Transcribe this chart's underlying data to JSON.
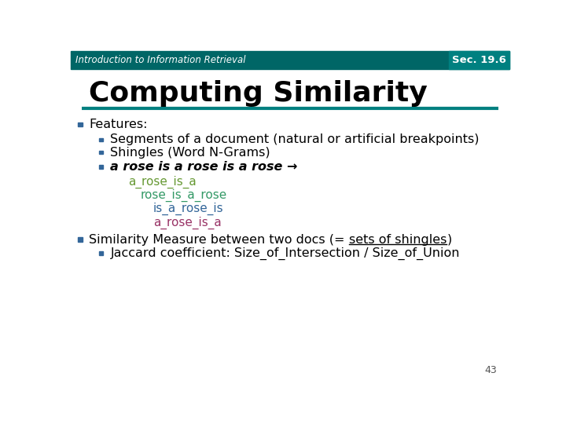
{
  "header_text": "Introduction to Information Retrieval",
  "header_bg": "#006666",
  "header_text_color": "#ffffff",
  "sec_text": "Sec. 19.6",
  "sec_bg": "#008080",
  "title": "Computing Similarity",
  "title_color": "#000000",
  "divider_color": "#008080",
  "slide_bg": "#ffffff",
  "bullet_color": "#336699",
  "page_number": "43",
  "items": [
    {
      "level": 0,
      "text": "Features:",
      "color": "#000000",
      "bold": false,
      "italic": false
    },
    {
      "level": 1,
      "text": "Segments of a document (natural or artificial breakpoints)",
      "color": "#000000",
      "bold": false,
      "italic": false
    },
    {
      "level": 1,
      "text": "Shingles (Word N-Grams)",
      "color": "#000000",
      "bold": false,
      "italic": false
    },
    {
      "level": 1,
      "text": "a rose is a rose is a rose →",
      "color": "#000000",
      "bold": true,
      "italic": true
    },
    {
      "level": 2,
      "text": "a_rose_is_a",
      "color": "#669933",
      "bold": false,
      "italic": false,
      "indent_extra": 0
    },
    {
      "level": 2,
      "text": "rose_is_a_rose",
      "color": "#339966",
      "bold": false,
      "italic": false,
      "indent_extra": 1
    },
    {
      "level": 2,
      "text": "is_a_rose_is",
      "color": "#336699",
      "bold": false,
      "italic": false,
      "indent_extra": 2
    },
    {
      "level": 2,
      "text": "a_rose_is_a",
      "color": "#993366",
      "bold": false,
      "italic": false,
      "indent_extra": 2
    },
    {
      "level": 0,
      "text": "Similarity Measure between two docs (= sets of shingles)",
      "color": "#000000",
      "bold": false,
      "italic": false,
      "has_underline": true,
      "pre": "Similarity Measure between two docs (= ",
      "ul": "sets of shingles",
      "post": ")"
    },
    {
      "level": 1,
      "text": "Jaccard coefficient: Size_of_Intersection / Size_of_Union",
      "color": "#000000",
      "bold": false,
      "italic": false
    }
  ],
  "level_indent": {
    "0": 30,
    "1": 65,
    "2": 95
  },
  "extra_indent_per": 20,
  "y_positions": [
    418,
    393,
    372,
    348,
    323,
    301,
    279,
    256,
    228,
    205
  ]
}
